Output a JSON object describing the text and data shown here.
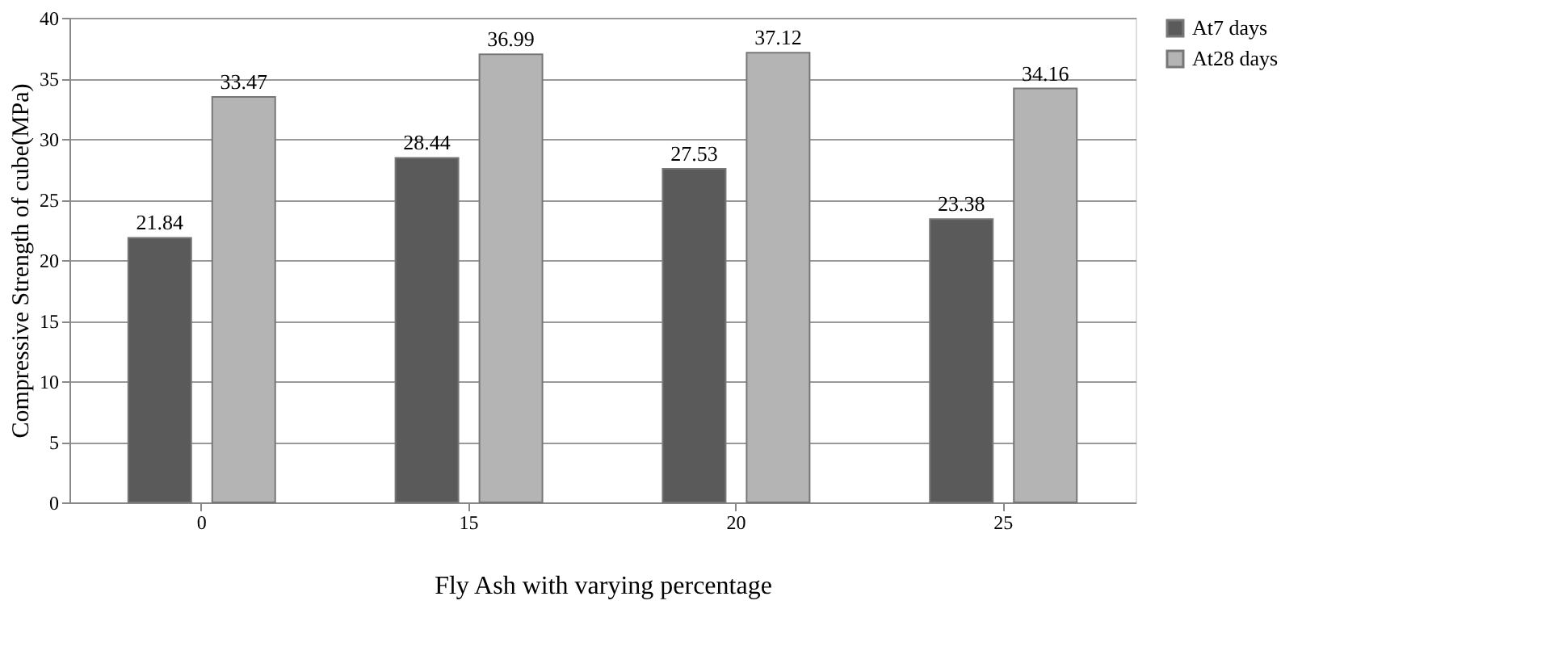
{
  "chart_data": {
    "type": "bar",
    "xlabel": "Fly Ash with varying percentage",
    "ylabel": "Compressive Strength of cube(MPa)",
    "categories": [
      "0",
      "15",
      "20",
      "25"
    ],
    "series": [
      {
        "name": "At7 days",
        "color": "#5a5a5a",
        "values": [
          21.84,
          28.44,
          27.53,
          23.38
        ]
      },
      {
        "name": "At28 days",
        "color": "#b4b4b4",
        "values": [
          33.47,
          36.99,
          37.12,
          34.16
        ]
      }
    ],
    "ylim": [
      0,
      40
    ],
    "yticks": [
      0,
      5,
      10,
      15,
      20,
      25,
      30,
      35,
      40
    ],
    "grid": "y",
    "legend": "right",
    "data_labels": true
  }
}
